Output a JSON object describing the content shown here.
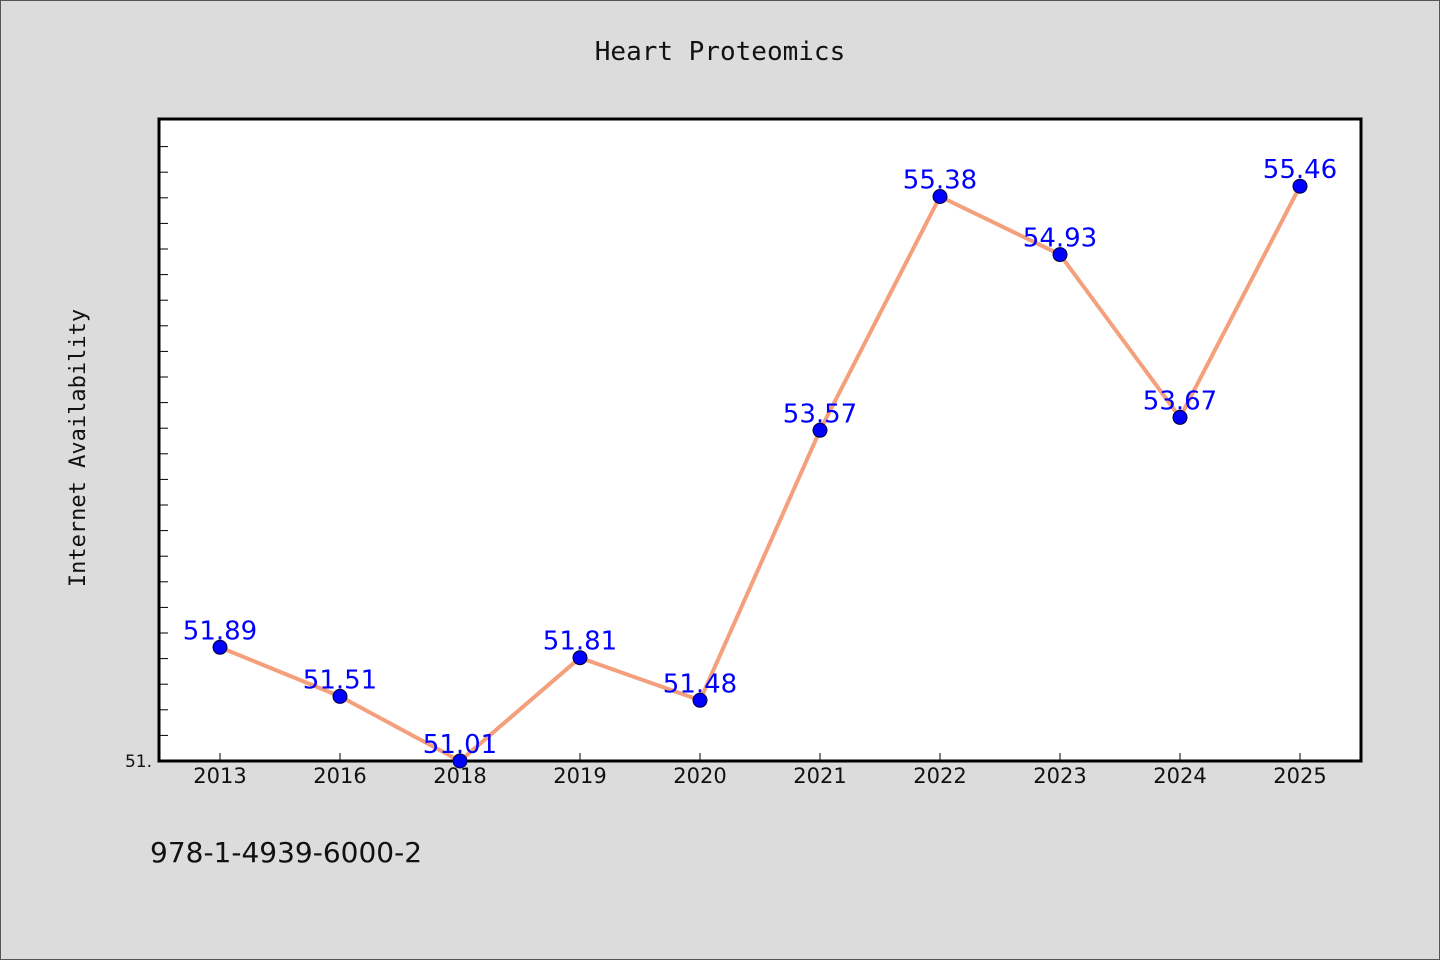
{
  "chart_data": {
    "type": "line",
    "title": "Heart Proteomics",
    "xlabel": "",
    "ylabel": "Internet Availability",
    "categories": [
      "2013",
      "2016",
      "2018",
      "2019",
      "2020",
      "2021",
      "2022",
      "2023",
      "2024",
      "2025"
    ],
    "series": [
      {
        "values": [
          51.89,
          51.51,
          51.01,
          51.81,
          51.48,
          53.57,
          55.38,
          54.93,
          53.67,
          55.46
        ],
        "labels": [
          "51.89",
          "51.51",
          "51.01",
          "51.81",
          "51.48",
          "53.57",
          "55.38",
          "54.93",
          "53.67",
          "55.46"
        ]
      }
    ],
    "ylim": [
      51.01,
      55.98
    ],
    "y_tick_labels": [
      "51."
    ],
    "grid": false,
    "legend": "none"
  },
  "footer_text": "978-1-4939-6000-2",
  "colors": {
    "background": "#dcdcdc",
    "plot_background": "#ffffff",
    "line": "#f4a07c",
    "marker": "#0000ff",
    "data_label": "#0000ff",
    "text": "#111111"
  }
}
